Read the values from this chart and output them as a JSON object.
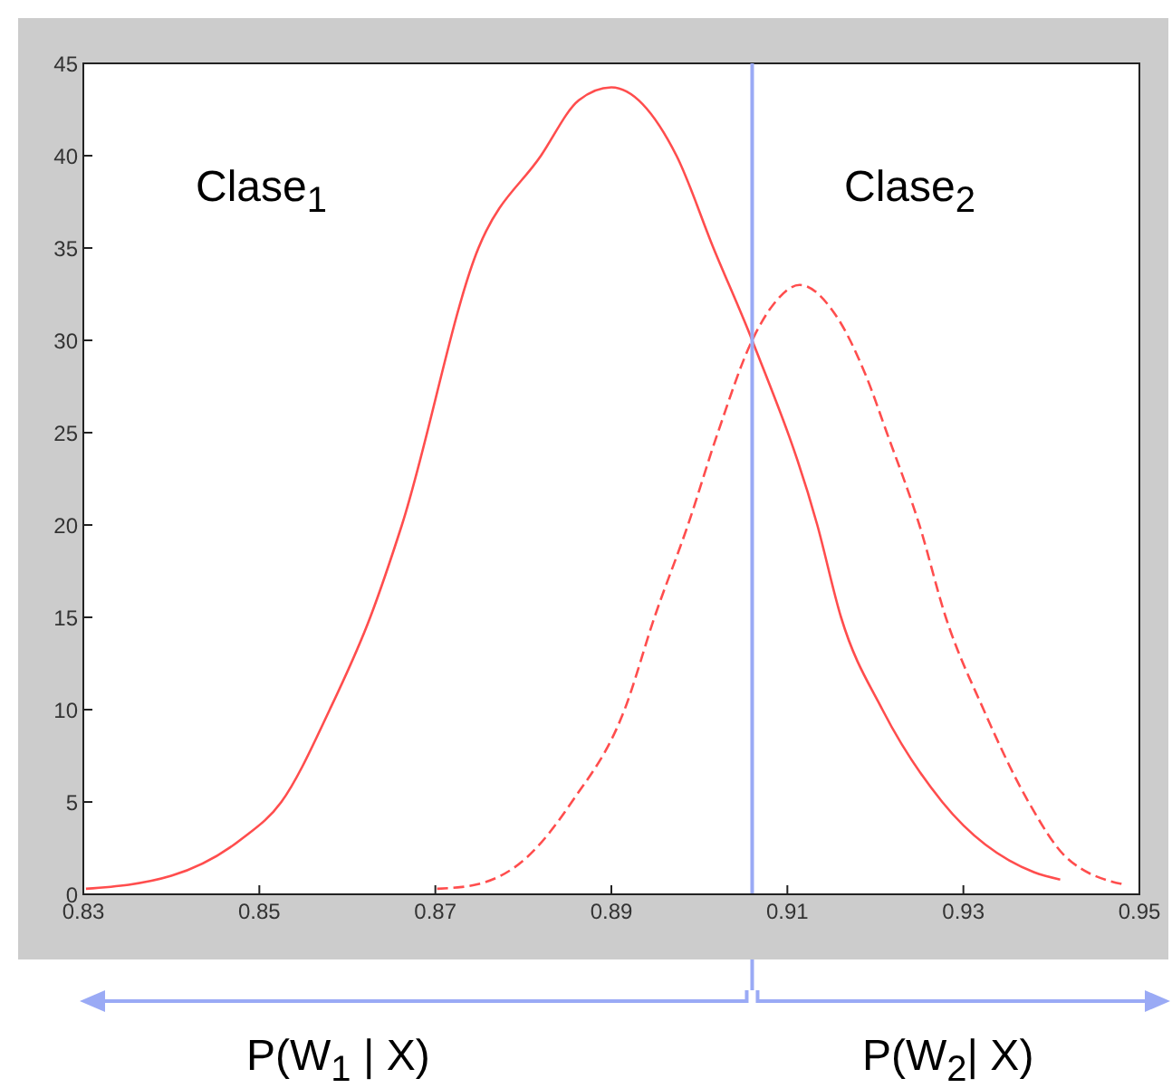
{
  "chart_data": {
    "type": "line",
    "xlim": [
      0.83,
      0.95
    ],
    "xticks": [
      0.83,
      0.85,
      0.87,
      0.89,
      0.91,
      0.93,
      0.95
    ],
    "ylim": [
      0,
      45
    ],
    "yticks": [
      0,
      5,
      10,
      15,
      20,
      25,
      30,
      35,
      40,
      45
    ],
    "marker": "none",
    "series": [
      {
        "color": "#ff4d4d",
        "line_style": "solid",
        "x": [
          0.8303,
          0.84,
          0.848,
          0.8525,
          0.858,
          0.8626,
          0.8662,
          0.8749,
          0.882,
          0.8863,
          0.89,
          0.8974,
          0.9016,
          0.906,
          0.9134,
          0.9161,
          0.9208,
          0.9276,
          0.938,
          0.941
        ],
        "values": [
          0.3,
          1,
          3,
          5,
          10,
          15,
          20,
          35,
          40,
          43,
          43.7,
          40,
          35,
          30,
          20,
          15,
          10,
          5,
          1.2,
          0.8
        ]
      },
      {
        "color": "#ff4d4d",
        "line_style": "dashed",
        "x": [
          0.8702,
          0.8744,
          0.8804,
          0.8855,
          0.8915,
          0.8949,
          0.8987,
          0.9021,
          0.906,
          0.9085,
          0.9114,
          0.9153,
          0.919,
          0.9213,
          0.925,
          0.928,
          0.9323,
          0.9374,
          0.9417,
          0.9485
        ],
        "values": [
          0.3,
          0.5,
          2,
          5,
          10,
          15,
          20,
          25,
          30,
          32,
          33,
          31.5,
          28,
          25,
          20,
          15,
          10,
          5,
          2,
          0.5
        ]
      }
    ],
    "ref_lines": [
      {
        "axis": "x",
        "value": 0.906,
        "color": "#9aaaf5"
      }
    ],
    "annotations": [
      "Clase$_{1}$",
      "Clase$_{2}$",
      "P(W$_{1}$ | X)",
      "P(W$_{2}$| X)"
    ]
  }
}
